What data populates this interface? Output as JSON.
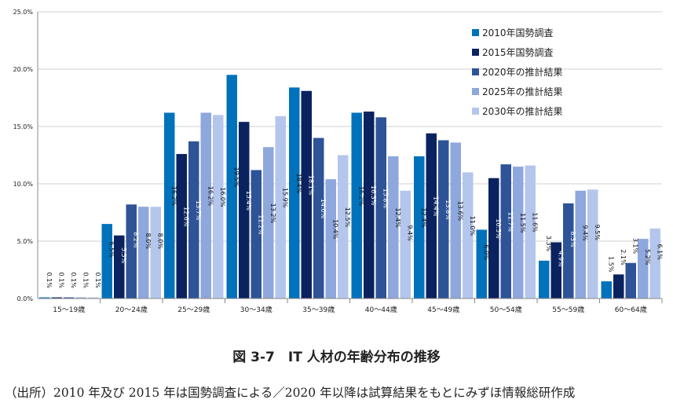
{
  "chart_data": {
    "type": "bar",
    "categories": [
      "15～19歳",
      "20～24歳",
      "25～29歳",
      "30～34歳",
      "35～39歳",
      "40～44歳",
      "45～49歳",
      "50～54歳",
      "55～59歳",
      "60～64歳"
    ],
    "series": [
      {
        "name": "2010年国勢調査",
        "color": "#0072bc",
        "values": [
          0.1,
          6.5,
          16.2,
          19.5,
          18.4,
          16.2,
          12.4,
          6.0,
          3.3,
          1.5
        ],
        "labels": [
          "0.1%",
          "6.5%",
          "16.2%",
          "19.5%",
          "18.4%",
          "16.2%",
          "12.4%",
          "6.0%",
          "3.3%",
          "1.5%"
        ]
      },
      {
        "name": "2015年国勢調査",
        "color": "#0a2260",
        "values": [
          0.1,
          5.5,
          12.6,
          15.4,
          18.1,
          16.3,
          14.4,
          10.5,
          4.9,
          2.1
        ],
        "labels": [
          "0.1%",
          "5.5%",
          "12.6%",
          "15.4%",
          "18.1%",
          "16.3%",
          "14.4%",
          "10.5%",
          "4.9%",
          "2.1%"
        ]
      },
      {
        "name": "2020年の推計結果",
        "color": "#2e5397",
        "values": [
          0.1,
          8.2,
          13.7,
          11.2,
          14.0,
          15.8,
          13.8,
          11.7,
          8.3,
          3.1
        ],
        "labels": [
          "0.1%",
          "8.2%",
          "13.7%",
          "11.2%",
          "14.0%",
          "15.8%",
          "13.8%",
          "11.7%",
          "8.3%",
          "3.1%"
        ]
      },
      {
        "name": "2025年の推計結果",
        "color": "#8ea7dc",
        "values": [
          0.1,
          8.0,
          16.2,
          13.2,
          10.4,
          12.4,
          13.6,
          11.5,
          9.4,
          5.2
        ],
        "labels": [
          "0.1%",
          "8.0%",
          "16.2%",
          "13.2%",
          "10.4%",
          "12.4%",
          "13.6%",
          "11.5%",
          "9.4%",
          "5.2%"
        ]
      },
      {
        "name": "2030年の推計結果",
        "color": "#b4c6ec",
        "values": [
          0.1,
          8.0,
          16.0,
          15.9,
          12.5,
          9.4,
          11.0,
          11.6,
          9.5,
          6.1
        ],
        "labels": [
          "0.1%",
          "8.0%",
          "16.0%",
          "15.9%",
          "12.5%",
          "9.4%",
          "11.0%",
          "11.6%",
          "9.5%",
          "6.1%"
        ]
      }
    ],
    "yticks": [
      "0.0%",
      "5.0%",
      "10.0%",
      "15.0%",
      "20.0%",
      "25.0%"
    ],
    "ylim": [
      0,
      25
    ],
    "grid": true,
    "legend_position": "top-right"
  },
  "caption": "図 3-7　IT 人材の年齢分布の推移",
  "source": "（出所）2010 年及び 2015 年は国勢調査による／2020 年以降は試算結果をもとにみずほ情報総研作成"
}
